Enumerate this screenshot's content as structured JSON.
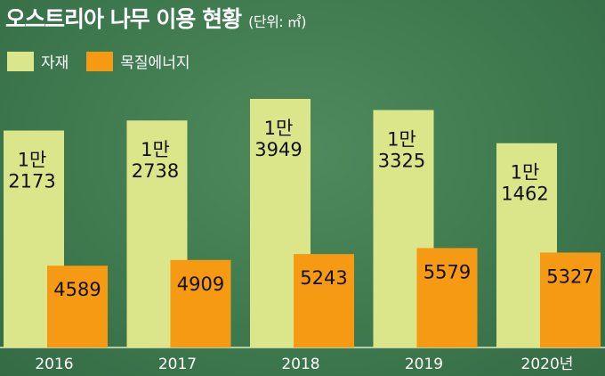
{
  "chart_data": {
    "type": "bar",
    "title": "오스트리아 나무 이용 현황",
    "unit": "(단위: ㎥)",
    "categories": [
      "2016",
      "2017",
      "2018",
      "2019",
      "2020년"
    ],
    "series": [
      {
        "name": "자재",
        "color": "#dbe58a",
        "values": [
          12173,
          12738,
          13949,
          13325,
          11462
        ],
        "labels": [
          "1만|2173",
          "1만|2738",
          "1만|3949",
          "1만|3325",
          "1만|1462"
        ]
      },
      {
        "name": "목질에너지",
        "color": "#f59a12",
        "values": [
          4589,
          4909,
          5243,
          5579,
          5327
        ],
        "labels": [
          "4589",
          "4909",
          "5243",
          "5579",
          "5327"
        ]
      }
    ],
    "legend": "top-left",
    "grid": false
  }
}
